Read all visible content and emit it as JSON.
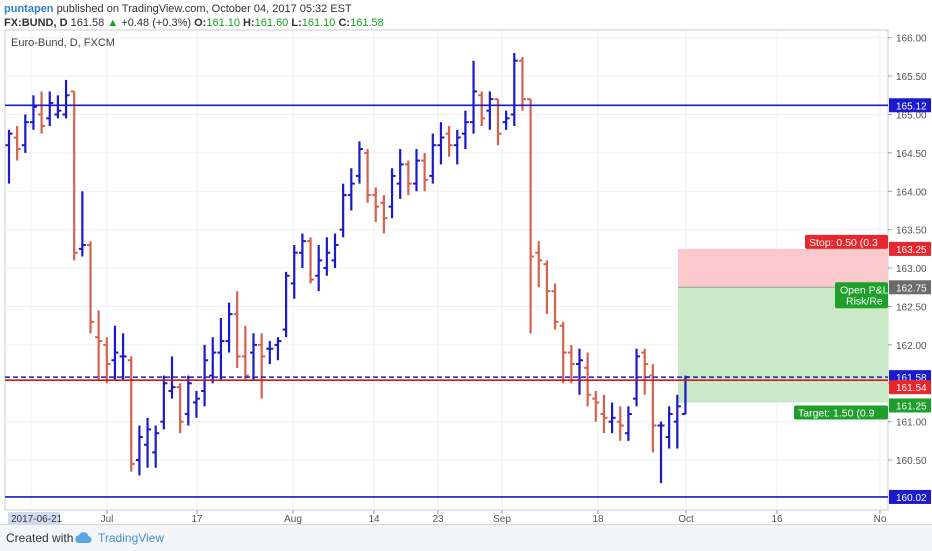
{
  "header": {
    "author": "puntapen",
    "published_text": "published on TradingView.com, October 04, 2017 05:32 EST",
    "symbol": "FX:BUND",
    "interval": "D",
    "last": "161.58",
    "change": "+0.48 (+0.3%)",
    "open_label": "O:",
    "open": "161.10",
    "high_label": "H:",
    "high": "161.60",
    "low_label": "L:",
    "low": "161.10",
    "close_label": "C:",
    "close": "161.58"
  },
  "chart_title": "Euro-Bund, D, FXCM",
  "footer": {
    "created_with": "Created with",
    "brand": "TradingView"
  },
  "colors": {
    "up": "#1a1acc",
    "down": "#d4624e",
    "axis_text": "#555555",
    "green_label": "#1e9e2a",
    "red_label": "#e8272c"
  },
  "chart_data": {
    "type": "ohlc-bar",
    "ylim": [
      159.85,
      166.1
    ],
    "y_ticks": [
      "166.00",
      "165.50",
      "165.00",
      "164.50",
      "164.00",
      "163.50",
      "163.00",
      "162.50",
      "162.00",
      "161.50",
      "161.00",
      "160.50"
    ],
    "x_ticks": [
      "2017-06-21",
      "Jul",
      "17",
      "Aug",
      "14",
      "23",
      "Sep",
      "18",
      "Oct",
      "16",
      "No"
    ],
    "horizontal_lines": [
      {
        "name": "resistance",
        "value": 165.12,
        "label": "165.12",
        "color": "#1a1acc",
        "style": "solid"
      },
      {
        "name": "last-price",
        "value": 161.58,
        "label": "161.58",
        "color": "#1a1acc",
        "style": "dashed"
      },
      {
        "name": "level",
        "value": 161.54,
        "label": "161.54",
        "color": "#d11a1a",
        "style": "solid"
      },
      {
        "name": "support",
        "value": 160.02,
        "label": "160.02",
        "color": "#1a1acc",
        "style": "solid"
      }
    ],
    "position": {
      "entry": 162.75,
      "stop": 163.25,
      "target": 161.25,
      "entry_label": "162.75",
      "stop_label": "163.25",
      "target_label": "161.25",
      "stop_text": "Stop: 0.50 (0.3",
      "target_text": "Target: 1.50 (0.9",
      "pnl_line1": "Open P&L",
      "pnl_line2": "Risk/Re"
    },
    "bars": [
      {
        "o": 164.6,
        "h": 164.8,
        "l": 164.1,
        "c": 164.75
      },
      {
        "o": 164.7,
        "h": 164.85,
        "l": 164.4,
        "c": 164.55
      },
      {
        "o": 164.6,
        "h": 165.0,
        "l": 164.5,
        "c": 164.9
      },
      {
        "o": 164.9,
        "h": 165.25,
        "l": 164.8,
        "c": 165.1
      },
      {
        "o": 165.0,
        "h": 165.3,
        "l": 164.75,
        "c": 164.85
      },
      {
        "o": 164.95,
        "h": 165.3,
        "l": 164.85,
        "c": 165.15
      },
      {
        "o": 165.0,
        "h": 165.25,
        "l": 164.95,
        "c": 165.05
      },
      {
        "o": 165.0,
        "h": 165.45,
        "l": 164.95,
        "c": 165.25
      },
      {
        "o": 165.3,
        "h": 165.3,
        "l": 163.1,
        "c": 163.2
      },
      {
        "o": 163.25,
        "h": 164.0,
        "l": 163.15,
        "c": 163.3
      },
      {
        "o": 163.3,
        "h": 163.35,
        "l": 162.15,
        "c": 162.3
      },
      {
        "o": 162.1,
        "h": 162.45,
        "l": 161.55,
        "c": 162.05
      },
      {
        "o": 162.0,
        "h": 162.1,
        "l": 161.5,
        "c": 161.75
      },
      {
        "o": 161.8,
        "h": 162.25,
        "l": 161.55,
        "c": 161.9
      },
      {
        "o": 161.85,
        "h": 162.15,
        "l": 161.55,
        "c": 161.85
      },
      {
        "o": 161.8,
        "h": 161.85,
        "l": 160.35,
        "c": 160.45
      },
      {
        "o": 160.5,
        "h": 160.95,
        "l": 160.3,
        "c": 160.8
      },
      {
        "o": 160.7,
        "h": 161.05,
        "l": 160.4,
        "c": 160.9
      },
      {
        "o": 160.6,
        "h": 160.95,
        "l": 160.4,
        "c": 160.85
      },
      {
        "o": 161.0,
        "h": 161.6,
        "l": 160.9,
        "c": 161.5
      },
      {
        "o": 161.4,
        "h": 161.85,
        "l": 161.3,
        "c": 161.45
      },
      {
        "o": 161.45,
        "h": 161.5,
        "l": 160.85,
        "c": 161.0
      },
      {
        "o": 161.1,
        "h": 161.6,
        "l": 160.95,
        "c": 161.5
      },
      {
        "o": 161.25,
        "h": 161.4,
        "l": 161.05,
        "c": 161.3
      },
      {
        "o": 161.4,
        "h": 162.0,
        "l": 161.2,
        "c": 161.8
      },
      {
        "o": 161.6,
        "h": 162.1,
        "l": 161.5,
        "c": 161.9
      },
      {
        "o": 161.9,
        "h": 162.35,
        "l": 161.55,
        "c": 162.05
      },
      {
        "o": 162.05,
        "h": 162.55,
        "l": 161.9,
        "c": 162.4
      },
      {
        "o": 162.4,
        "h": 162.7,
        "l": 161.7,
        "c": 161.85
      },
      {
        "o": 161.85,
        "h": 162.25,
        "l": 161.55,
        "c": 161.6
      },
      {
        "o": 161.9,
        "h": 162.15,
        "l": 161.55,
        "c": 162.0
      },
      {
        "o": 162.0,
        "h": 162.15,
        "l": 161.3,
        "c": 161.85
      },
      {
        "o": 161.95,
        "h": 162.05,
        "l": 161.75,
        "c": 161.95
      },
      {
        "o": 162.0,
        "h": 162.1,
        "l": 161.8,
        "c": 162.05
      },
      {
        "o": 162.2,
        "h": 162.95,
        "l": 162.1,
        "c": 162.9
      },
      {
        "o": 162.8,
        "h": 163.3,
        "l": 162.6,
        "c": 163.2
      },
      {
        "o": 163.2,
        "h": 163.45,
        "l": 163.0,
        "c": 163.35
      },
      {
        "o": 163.35,
        "h": 163.4,
        "l": 162.8,
        "c": 162.85
      },
      {
        "o": 162.9,
        "h": 163.3,
        "l": 162.7,
        "c": 163.1
      },
      {
        "o": 163.0,
        "h": 163.4,
        "l": 162.9,
        "c": 163.2
      },
      {
        "o": 163.1,
        "h": 163.45,
        "l": 163.0,
        "c": 163.3
      },
      {
        "o": 163.5,
        "h": 164.1,
        "l": 163.4,
        "c": 163.95
      },
      {
        "o": 163.95,
        "h": 164.3,
        "l": 163.75,
        "c": 164.1
      },
      {
        "o": 164.2,
        "h": 164.65,
        "l": 164.1,
        "c": 164.55
      },
      {
        "o": 164.5,
        "h": 164.55,
        "l": 163.85,
        "c": 163.95
      },
      {
        "o": 163.95,
        "h": 164.05,
        "l": 163.6,
        "c": 163.8
      },
      {
        "o": 163.85,
        "h": 163.95,
        "l": 163.45,
        "c": 163.65
      },
      {
        "o": 163.8,
        "h": 164.3,
        "l": 163.65,
        "c": 164.2
      },
      {
        "o": 164.1,
        "h": 164.55,
        "l": 163.9,
        "c": 164.35
      },
      {
        "o": 164.35,
        "h": 164.4,
        "l": 163.95,
        "c": 164.1
      },
      {
        "o": 164.1,
        "h": 164.55,
        "l": 164.0,
        "c": 164.4
      },
      {
        "o": 164.4,
        "h": 164.5,
        "l": 164.0,
        "c": 164.15
      },
      {
        "o": 164.2,
        "h": 164.75,
        "l": 164.1,
        "c": 164.6
      },
      {
        "o": 164.6,
        "h": 164.9,
        "l": 164.35,
        "c": 164.7
      },
      {
        "o": 164.75,
        "h": 164.85,
        "l": 164.45,
        "c": 164.6
      },
      {
        "o": 164.6,
        "h": 164.8,
        "l": 164.35,
        "c": 164.7
      },
      {
        "o": 164.75,
        "h": 165.05,
        "l": 164.55,
        "c": 164.9
      },
      {
        "o": 164.9,
        "h": 165.7,
        "l": 164.75,
        "c": 165.3
      },
      {
        "o": 165.25,
        "h": 165.3,
        "l": 164.85,
        "c": 164.95
      },
      {
        "o": 165.05,
        "h": 165.3,
        "l": 164.8,
        "c": 165.2
      },
      {
        "o": 165.2,
        "h": 165.2,
        "l": 164.6,
        "c": 164.75
      },
      {
        "o": 164.9,
        "h": 165.05,
        "l": 164.8,
        "c": 164.95
      },
      {
        "o": 165.0,
        "h": 165.8,
        "l": 164.85,
        "c": 165.7
      },
      {
        "o": 165.7,
        "h": 165.75,
        "l": 165.05,
        "c": 165.2
      },
      {
        "o": 165.2,
        "h": 165.2,
        "l": 162.15,
        "c": 163.15
      },
      {
        "o": 163.2,
        "h": 163.35,
        "l": 162.75,
        "c": 163.1
      },
      {
        "o": 163.05,
        "h": 163.1,
        "l": 162.4,
        "c": 162.7
      },
      {
        "o": 162.7,
        "h": 162.8,
        "l": 162.2,
        "c": 162.3
      },
      {
        "o": 162.25,
        "h": 162.3,
        "l": 161.5,
        "c": 161.9
      },
      {
        "o": 161.9,
        "h": 162.0,
        "l": 161.5,
        "c": 161.75
      },
      {
        "o": 161.75,
        "h": 161.95,
        "l": 161.35,
        "c": 161.8
      },
      {
        "o": 161.7,
        "h": 161.9,
        "l": 161.2,
        "c": 161.35
      },
      {
        "o": 161.3,
        "h": 161.4,
        "l": 161.0,
        "c": 161.25
      },
      {
        "o": 161.1,
        "h": 161.35,
        "l": 160.85,
        "c": 161.05
      },
      {
        "o": 161.0,
        "h": 161.25,
        "l": 160.85,
        "c": 161.05
      },
      {
        "o": 161.0,
        "h": 161.2,
        "l": 160.75,
        "c": 160.95
      },
      {
        "o": 160.85,
        "h": 161.2,
        "l": 160.75,
        "c": 161.1
      },
      {
        "o": 161.3,
        "h": 161.95,
        "l": 161.2,
        "c": 161.85
      },
      {
        "o": 161.9,
        "h": 161.95,
        "l": 161.35,
        "c": 161.75
      },
      {
        "o": 161.6,
        "h": 161.75,
        "l": 160.6,
        "c": 160.95
      },
      {
        "o": 160.95,
        "h": 161.0,
        "l": 160.2,
        "c": 160.95
      },
      {
        "o": 160.8,
        "h": 161.2,
        "l": 160.65,
        "c": 161.1
      },
      {
        "o": 161.0,
        "h": 161.35,
        "l": 160.65,
        "c": 161.2
      },
      {
        "o": 161.1,
        "h": 161.6,
        "l": 161.1,
        "c": 161.58
      }
    ]
  }
}
